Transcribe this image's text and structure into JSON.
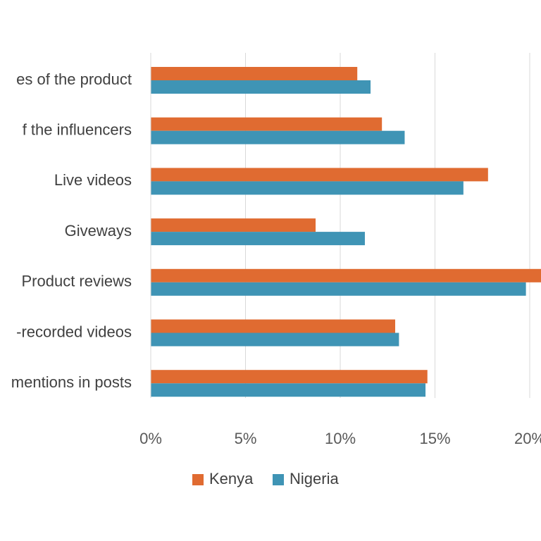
{
  "chart_data": {
    "type": "bar",
    "orientation": "horizontal",
    "categories": [
      "es of the product",
      "f the influencers",
      "Live videos",
      "Giveways",
      "Product reviews",
      "-recorded videos",
      "mentions in posts"
    ],
    "series": [
      {
        "name": "Kenya",
        "color": "#e06b31",
        "values": [
          10.9,
          12.2,
          17.8,
          8.7,
          20.7,
          12.9,
          14.6
        ]
      },
      {
        "name": "Nigeria",
        "color": "#3f94b5",
        "values": [
          11.6,
          13.4,
          16.5,
          11.3,
          19.8,
          13.1,
          14.5
        ]
      }
    ],
    "xlim": [
      0,
      20
    ],
    "x_ticks": [
      0,
      5,
      10,
      15,
      20
    ],
    "x_tick_labels": [
      "0%",
      "5%",
      "10%",
      "15%",
      "20%"
    ],
    "grid": true,
    "legend_position": "bottom",
    "title": "",
    "xlabel": "",
    "ylabel": ""
  }
}
